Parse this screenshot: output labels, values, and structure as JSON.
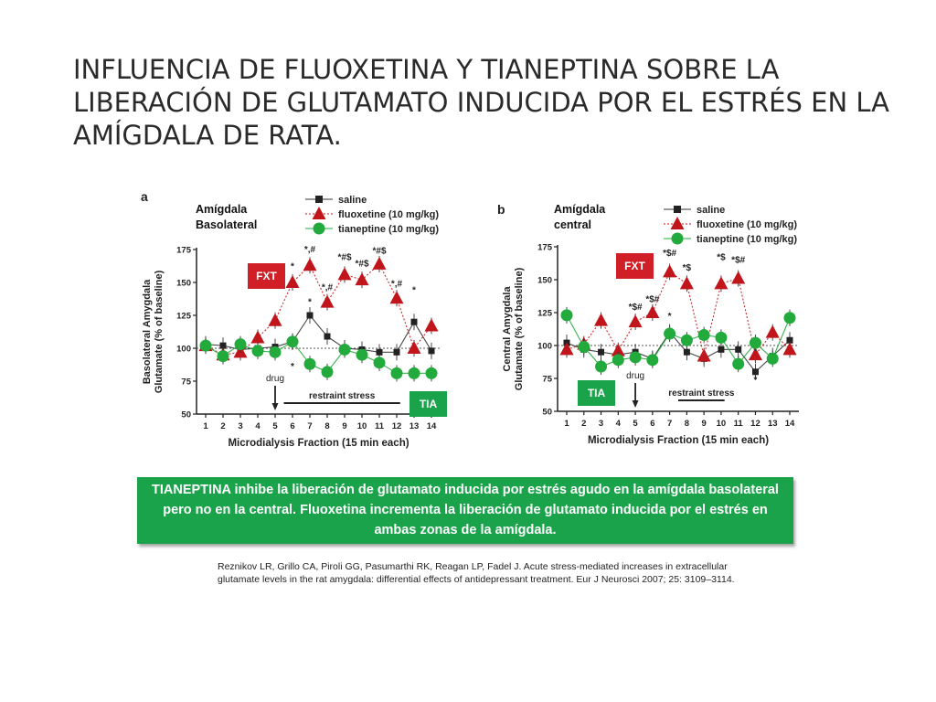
{
  "title_lines": [
    "INFLUENCIA DE FLUOXETINA Y TIANEPTINA SOBRE LA",
    "LIBERACIÓN DE GLUTAMATO INDUCIDA  POR EL ESTRÉS EN LA",
    "AMÍGDALA DE RATA."
  ],
  "summary_text": "TIANEPTINA  inhibe la liberación de glutamato inducida por estrés agudo en  la amígdala basolateral pero no en la central. Fluoxetina incrementa la liberación de glutamato inducida por el estrés en ambas zonas de la amígdala.",
  "citation": "Reznikov LR, Grillo CA, Piroli GG, Pasumarthi RK, Reagan LP, Fadel J. Acute stress-mediated increases in extracellular glutamate levels in the rat amygdala: differential effects of antidepressant treatment. Eur J Neurosci 2007; 25: 3109–3114.",
  "colors": {
    "saline": "#222222",
    "fluoxetine": "#c0151b",
    "tianeptine": "#22aa3c",
    "badge_red": "#d01f26",
    "badge_green": "#1aa34a"
  },
  "chart_data": [
    {
      "type": "line",
      "panel_letter": "a",
      "region_label_lines": [
        "Amígdala",
        "Basolateral"
      ],
      "xlabel": "Microdialysis Fraction (15 min each)",
      "ylabel_lines": [
        "Basolateral Amygdala",
        "Glutamate (% of baseline)"
      ],
      "x": [
        1,
        2,
        3,
        4,
        5,
        6,
        7,
        8,
        9,
        10,
        11,
        12,
        13,
        14
      ],
      "xlim": [
        1,
        14
      ],
      "ylim": [
        50,
        175
      ],
      "yticks": [
        50,
        75,
        100,
        125,
        150,
        175
      ],
      "baseline": 100,
      "drug_label": "drug",
      "drug_fraction": 5,
      "stress_label": "restraint stress",
      "stress_range": [
        5,
        12
      ],
      "badges": {
        "fluoxetine": "FXT",
        "tianeptine": "TIA"
      },
      "series": [
        {
          "name": "saline",
          "key": "saline",
          "values": [
            103,
            102,
            99,
            100,
            101,
            105,
            125,
            109,
            100,
            99,
            97,
            97,
            120,
            98
          ]
        },
        {
          "name": "fluoxetine (10 mg/kg)",
          "key": "fluoxetine",
          "values": [
            102,
            95,
            97,
            108,
            121,
            150,
            163,
            135,
            156,
            152,
            164,
            138,
            100,
            117
          ]
        },
        {
          "name": "tianeptine (10 mg/kg)",
          "key": "tianeptine",
          "values": [
            102,
            94,
            103,
            98,
            97,
            105,
            88,
            82,
            99,
            95,
            89,
            81,
            81,
            81
          ]
        }
      ],
      "annotations": [
        {
          "text": "*",
          "x": 6,
          "y": 160
        },
        {
          "text": "*,#",
          "x": 7,
          "y": 173
        },
        {
          "text": "*,#",
          "x": 8,
          "y": 144
        },
        {
          "text": "*#$",
          "x": 9,
          "y": 167
        },
        {
          "text": "*#$",
          "x": 10,
          "y": 162
        },
        {
          "text": "*#$",
          "x": 11,
          "y": 172
        },
        {
          "text": "*,#",
          "x": 12,
          "y": 147
        },
        {
          "text": "*",
          "x": 13,
          "y": 142
        },
        {
          "text": "*",
          "x": 7,
          "y": 133
        },
        {
          "text": "*",
          "x": 6,
          "y": 84
        }
      ]
    },
    {
      "type": "line",
      "panel_letter": "b",
      "region_label_lines": [
        "Amígdala",
        "central"
      ],
      "xlabel": "Microdialysis Fraction (15 min each)",
      "ylabel_lines": [
        "Central Amygdala",
        "Glutamate (% of baseline)"
      ],
      "x": [
        1,
        2,
        3,
        4,
        5,
        6,
        7,
        8,
        9,
        10,
        11,
        12,
        13,
        14
      ],
      "xlim": [
        1,
        14
      ],
      "ylim": [
        50,
        175
      ],
      "yticks": [
        50,
        75,
        100,
        125,
        150,
        175
      ],
      "baseline": 100,
      "drug_label": "drug",
      "drug_fraction": 5,
      "stress_label": "restraint stress",
      "stress_range": [
        7,
        10
      ],
      "badges": {
        "fluoxetine": "FXT",
        "tianeptine": "TIA"
      },
      "series": [
        {
          "name": "saline",
          "key": "saline",
          "values": [
            102,
            97,
            95,
            93,
            95,
            90,
            110,
            95,
            90,
            97,
            97,
            80,
            92,
            104
          ]
        },
        {
          "name": "fluoxetine (10 mg/kg)",
          "key": "fluoxetine",
          "values": [
            97,
            101,
            119,
            96,
            118,
            125,
            156,
            147,
            92,
            147,
            151,
            93,
            110,
            97
          ]
        },
        {
          "name": "tianeptine (10 mg/kg)",
          "key": "tianeptine",
          "values": [
            123,
            99,
            84,
            89,
            91,
            89,
            109,
            104,
            108,
            106,
            86,
            102,
            90,
            121
          ]
        }
      ],
      "annotations": [
        {
          "text": "*$#",
          "x": 7,
          "y": 168
        },
        {
          "text": "*$",
          "x": 8,
          "y": 157
        },
        {
          "text": "*$",
          "x": 10,
          "y": 165
        },
        {
          "text": "*$#",
          "x": 11,
          "y": 163
        },
        {
          "text": "*$#",
          "x": 5,
          "y": 127
        },
        {
          "text": "*$#",
          "x": 6,
          "y": 133
        },
        {
          "text": "*",
          "x": 7,
          "y": 120
        },
        {
          "text": "*",
          "x": 12,
          "y": 72
        }
      ]
    }
  ]
}
